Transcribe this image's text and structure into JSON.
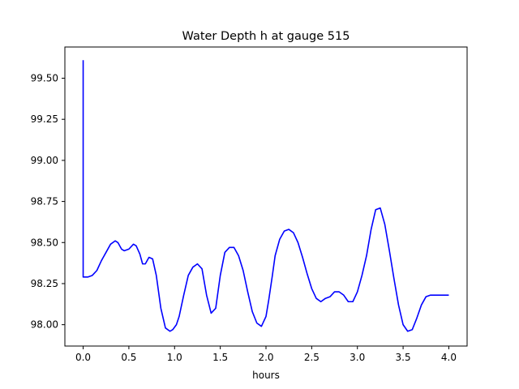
{
  "chart_data": {
    "type": "line",
    "title": "Water Depth h at gauge 515",
    "xlabel": "hours",
    "ylabel": "",
    "xlim": [
      -0.2,
      4.2
    ],
    "ylim": [
      97.87,
      99.69
    ],
    "x_ticks": [
      0.0,
      0.5,
      1.0,
      1.5,
      2.0,
      2.5,
      3.0,
      3.5,
      4.0
    ],
    "x_tick_labels": [
      "0.0",
      "0.5",
      "1.0",
      "1.5",
      "2.0",
      "2.5",
      "3.0",
      "3.5",
      "4.0"
    ],
    "y_ticks": [
      98.0,
      98.25,
      98.5,
      98.75,
      99.0,
      99.25,
      99.5
    ],
    "y_tick_labels": [
      "98.00",
      "98.25",
      "98.50",
      "98.75",
      "99.00",
      "99.25",
      "99.50"
    ],
    "grid": false,
    "legend": "none",
    "series": [
      {
        "color": "#0000ff",
        "x": [
          0.0,
          0.0,
          0.05,
          0.1,
          0.15,
          0.2,
          0.25,
          0.3,
          0.35,
          0.38,
          0.42,
          0.45,
          0.5,
          0.55,
          0.58,
          0.62,
          0.65,
          0.68,
          0.72,
          0.76,
          0.8,
          0.85,
          0.9,
          0.95,
          0.98,
          1.02,
          1.05,
          1.1,
          1.15,
          1.2,
          1.25,
          1.3,
          1.35,
          1.4,
          1.45,
          1.5,
          1.55,
          1.6,
          1.65,
          1.7,
          1.75,
          1.8,
          1.85,
          1.9,
          1.95,
          2.0,
          2.03,
          2.07,
          2.1,
          2.15,
          2.2,
          2.25,
          2.3,
          2.35,
          2.4,
          2.45,
          2.5,
          2.55,
          2.6,
          2.65,
          2.7,
          2.75,
          2.8,
          2.85,
          2.9,
          2.95,
          3.0,
          3.05,
          3.1,
          3.15,
          3.2,
          3.25,
          3.3,
          3.35,
          3.4,
          3.45,
          3.5,
          3.55,
          3.6,
          3.65,
          3.7,
          3.75,
          3.8,
          3.85,
          3.9,
          3.95,
          4.0
        ],
        "y": [
          99.61,
          98.29,
          98.29,
          98.3,
          98.33,
          98.39,
          98.44,
          98.49,
          98.51,
          98.5,
          98.46,
          98.45,
          98.46,
          98.49,
          98.48,
          98.43,
          98.37,
          98.37,
          98.41,
          98.4,
          98.3,
          98.1,
          97.98,
          97.96,
          97.97,
          98.0,
          98.05,
          98.18,
          98.3,
          98.35,
          98.37,
          98.34,
          98.18,
          98.07,
          98.1,
          98.3,
          98.44,
          98.47,
          98.47,
          98.42,
          98.33,
          98.2,
          98.08,
          98.01,
          97.99,
          98.05,
          98.15,
          98.3,
          98.42,
          98.52,
          98.57,
          98.58,
          98.56,
          98.5,
          98.41,
          98.31,
          98.22,
          98.16,
          98.14,
          98.16,
          98.17,
          98.2,
          98.2,
          98.18,
          98.14,
          98.14,
          98.2,
          98.3,
          98.42,
          98.58,
          98.7,
          98.71,
          98.61,
          98.45,
          98.28,
          98.12,
          98.0,
          97.96,
          97.97,
          98.04,
          98.12,
          98.17,
          98.18,
          98.18,
          98.18,
          98.18,
          98.18
        ]
      }
    ]
  }
}
